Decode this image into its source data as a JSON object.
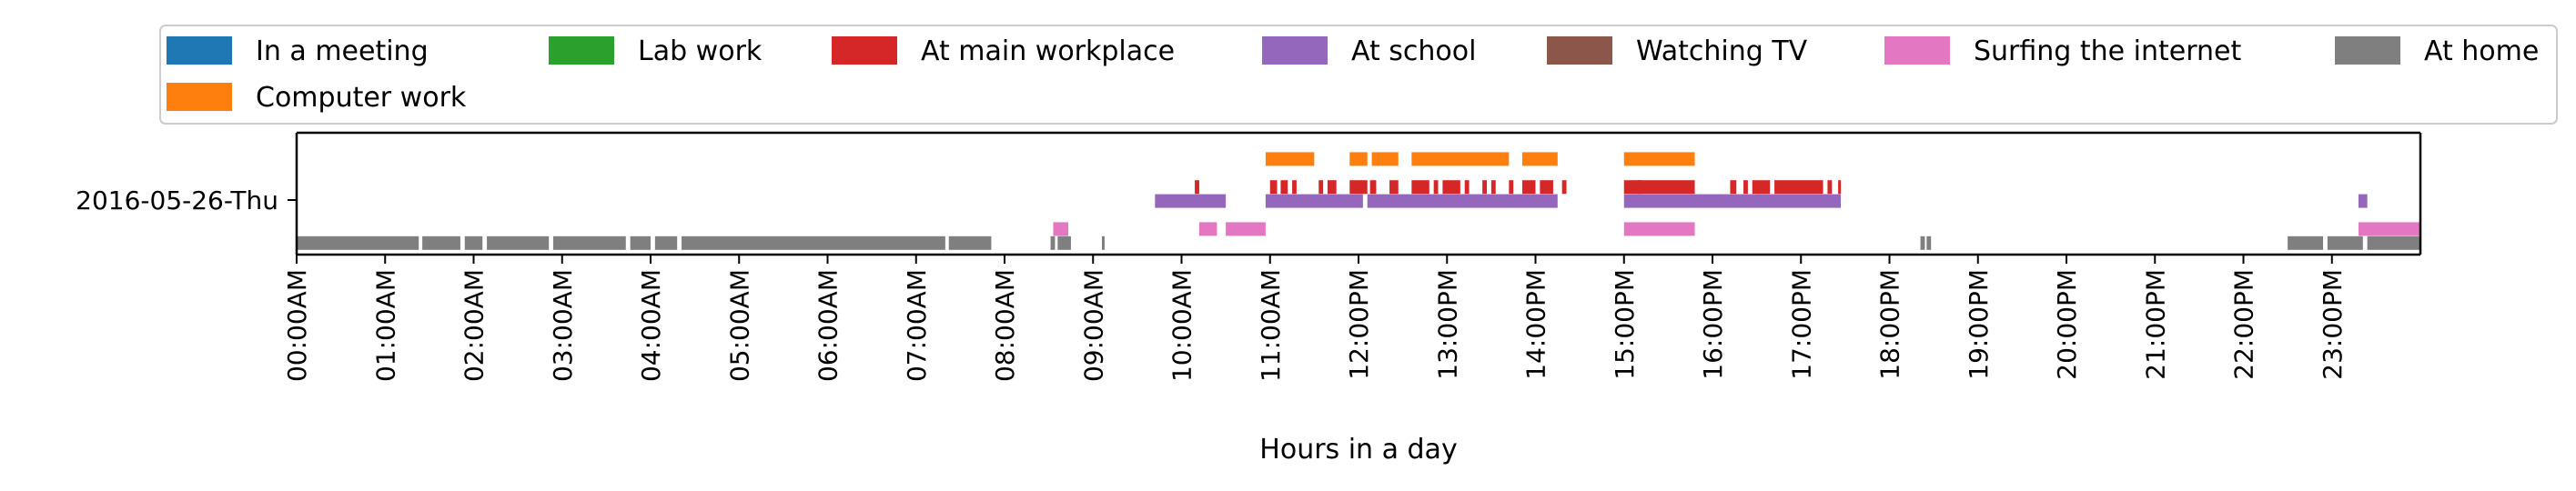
{
  "chart_data": {
    "type": "timeline",
    "xlabel": "Hours in a day",
    "y_category": "2016-05-26-Thu",
    "x_ticks": [
      "00:00AM",
      "01:00AM",
      "02:00AM",
      "03:00AM",
      "04:00AM",
      "05:00AM",
      "06:00AM",
      "07:00AM",
      "08:00AM",
      "09:00AM",
      "10:00AM",
      "11:00AM",
      "12:00PM",
      "13:00PM",
      "14:00PM",
      "15:00PM",
      "16:00PM",
      "17:00PM",
      "18:00PM",
      "19:00PM",
      "20:00PM",
      "21:00PM",
      "22:00PM",
      "23:00PM"
    ],
    "xlim": [
      0,
      24
    ],
    "legend_placement": "top (overlapping plot), 7 columns",
    "series": [
      {
        "name": "In a meeting",
        "color": "#1f77b4",
        "lane": 0,
        "intervals": []
      },
      {
        "name": "Computer work",
        "color": "#ff7f0e",
        "lane": 1,
        "intervals": [
          [
            10.95,
            11.5
          ],
          [
            11.9,
            12.1
          ],
          [
            12.15,
            12.45
          ],
          [
            12.6,
            13.7
          ],
          [
            13.85,
            14.25
          ],
          [
            15.0,
            15.8
          ]
        ]
      },
      {
        "name": "Lab work",
        "color": "#2ca02c",
        "lane": 2,
        "intervals": []
      },
      {
        "name": "At main workplace",
        "color": "#d62728",
        "lane": 3,
        "intervals": [
          [
            10.15,
            10.2
          ],
          [
            11.0,
            11.08
          ],
          [
            11.12,
            11.2
          ],
          [
            11.25,
            11.3
          ],
          [
            11.55,
            11.6
          ],
          [
            11.65,
            11.75
          ],
          [
            11.9,
            12.1
          ],
          [
            12.13,
            12.2
          ],
          [
            12.35,
            12.45
          ],
          [
            12.6,
            12.8
          ],
          [
            12.85,
            12.9
          ],
          [
            12.95,
            13.15
          ],
          [
            13.2,
            13.25
          ],
          [
            13.4,
            13.45
          ],
          [
            13.5,
            13.55
          ],
          [
            13.7,
            13.75
          ],
          [
            13.85,
            14.0
          ],
          [
            14.05,
            14.2
          ],
          [
            14.3,
            14.35
          ],
          [
            15.0,
            15.8
          ],
          [
            15.15,
            15.2
          ],
          [
            16.2,
            16.27
          ],
          [
            16.35,
            16.4
          ],
          [
            16.45,
            16.65
          ],
          [
            16.7,
            17.25
          ],
          [
            17.3,
            17.35
          ],
          [
            17.42,
            17.45
          ]
        ]
      },
      {
        "name": "At school",
        "color": "#9467bd",
        "lane": 4,
        "intervals": [
          [
            9.7,
            10.5
          ],
          [
            10.95,
            12.05
          ],
          [
            12.1,
            14.25
          ],
          [
            15.0,
            17.45
          ],
          [
            23.3,
            23.4
          ]
        ]
      },
      {
        "name": "Watching TV",
        "color": "#8c564b",
        "lane": 5,
        "intervals": []
      },
      {
        "name": "Surfing the internet",
        "color": "#e377c2",
        "lane": 6,
        "intervals": [
          [
            8.55,
            8.72
          ],
          [
            10.2,
            10.4
          ],
          [
            10.5,
            10.95
          ],
          [
            15.0,
            15.8
          ],
          [
            23.3,
            24.0
          ]
        ]
      },
      {
        "name": "At home",
        "color": "#7f7f7f",
        "lane": 7,
        "intervals": [
          [
            0.0,
            1.38
          ],
          [
            1.42,
            1.85
          ],
          [
            1.9,
            2.1
          ],
          [
            2.15,
            2.85
          ],
          [
            2.9,
            3.72
          ],
          [
            3.77,
            4.0
          ],
          [
            4.05,
            4.3
          ],
          [
            4.35,
            7.33
          ],
          [
            7.37,
            7.85
          ],
          [
            8.52,
            8.57
          ],
          [
            8.6,
            8.75
          ],
          [
            9.1,
            9.13
          ],
          [
            18.35,
            18.4
          ],
          [
            18.42,
            18.47
          ],
          [
            22.5,
            22.9
          ],
          [
            22.95,
            23.35
          ],
          [
            23.4,
            24.0
          ]
        ]
      }
    ]
  }
}
